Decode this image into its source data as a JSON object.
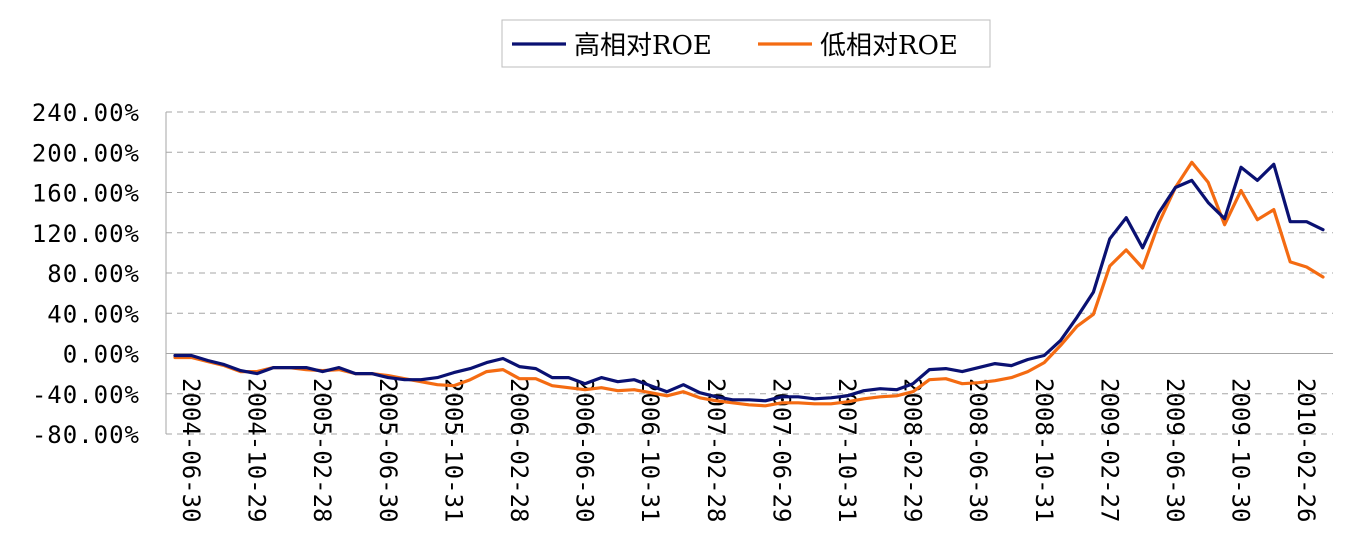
{
  "chart_data": {
    "type": "line",
    "title": "",
    "xlabel": "",
    "ylabel": "",
    "legend_position": "top-center",
    "grid": true,
    "ylim": [
      -80,
      240
    ],
    "y_ticks": [
      "240.00%",
      "200.00%",
      "160.00%",
      "120.00%",
      "80.00%",
      "40.00%",
      "0.00%",
      "-40.00%",
      "-80.00%"
    ],
    "x_tick_labels": [
      "2004-06-30",
      "2004-10-29",
      "2005-02-28",
      "2005-06-30",
      "2005-10-31",
      "2006-02-28",
      "2006-06-30",
      "2006-10-31",
      "2007-02-28",
      "2007-06-29",
      "2007-10-31",
      "2008-02-29",
      "2008-06-30",
      "2008-10-31",
      "2009-02-27",
      "2009-06-30",
      "2009-10-30",
      "2010-02-26"
    ],
    "x_tick_every": 4,
    "series": [
      {
        "name": "高相对ROE",
        "color": "#0a1172",
        "values": [
          -2,
          -2,
          -7,
          -11,
          -17,
          -20,
          -14,
          -14,
          -14,
          -18,
          -14,
          -20,
          -20,
          -24,
          -26,
          -26,
          -24,
          -19,
          -15,
          -9,
          -5,
          -13,
          -15,
          -24,
          -24,
          -30,
          -24,
          -28,
          -26,
          -32,
          -38,
          -31,
          -39,
          -43,
          -46,
          -46,
          -47,
          -43,
          -43,
          -45,
          -44,
          -42,
          -37,
          -35,
          -36,
          -30,
          -16,
          -15,
          -18,
          -14,
          -10,
          -12,
          -6,
          -2,
          13,
          36,
          61,
          114,
          135,
          105,
          140,
          165,
          172,
          150,
          134,
          185,
          172,
          188,
          131,
          131,
          123
        ]
      },
      {
        "name": "低相对ROE",
        "color": "#f46b12",
        "values": [
          -4,
          -4,
          -8,
          -12,
          -18,
          -18,
          -14,
          -14,
          -16,
          -17,
          -16,
          -20,
          -20,
          -22,
          -25,
          -28,
          -31,
          -32,
          -26,
          -18,
          -16,
          -25,
          -25,
          -32,
          -34,
          -36,
          -34,
          -37,
          -36,
          -39,
          -42,
          -38,
          -44,
          -47,
          -49,
          -51,
          -52,
          -49,
          -49,
          -50,
          -50,
          -48,
          -45,
          -43,
          -42,
          -38,
          -26,
          -25,
          -30,
          -29,
          -27,
          -24,
          -18,
          -9,
          8,
          27,
          39,
          87,
          103,
          85,
          130,
          165,
          190,
          170,
          128,
          162,
          133,
          143,
          91,
          86,
          76
        ]
      }
    ]
  }
}
